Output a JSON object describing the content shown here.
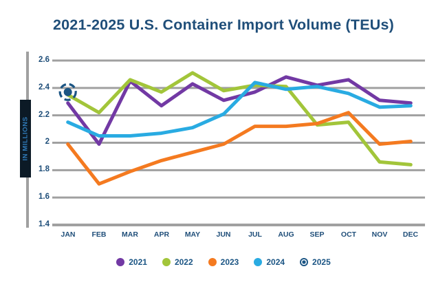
{
  "chart_data": {
    "type": "line",
    "title": "2021-2025 U.S. Container Import Volume (TEUs)",
    "ylabel": "IN MILLIONS",
    "xlabel": "",
    "categories": [
      "JAN",
      "FEB",
      "MAR",
      "APR",
      "MAY",
      "JUN",
      "JUL",
      "AUG",
      "SEP",
      "OCT",
      "NOV",
      "DEC"
    ],
    "yticks": [
      "2.6",
      "2.4",
      "2.2",
      "2",
      "1.8",
      "1.6",
      "1.4"
    ],
    "ylim": [
      1.4,
      2.6
    ],
    "grid": true,
    "legend_position": "bottom",
    "series": [
      {
        "name": "2021",
        "color": "#7239A4",
        "values": [
          2.29,
          1.99,
          2.45,
          2.27,
          2.43,
          2.31,
          2.37,
          2.48,
          2.42,
          2.46,
          2.31,
          2.29
        ]
      },
      {
        "name": "2022",
        "color": "#A2C53A",
        "values": [
          2.35,
          2.22,
          2.46,
          2.37,
          2.51,
          2.38,
          2.42,
          2.41,
          2.13,
          2.15,
          1.86,
          1.84
        ]
      },
      {
        "name": "2023",
        "color": "#F47A20",
        "values": [
          1.99,
          1.7,
          1.79,
          1.87,
          1.93,
          1.99,
          2.12,
          2.12,
          2.14,
          2.22,
          1.99,
          2.01
        ]
      },
      {
        "name": "2024",
        "color": "#29ABE2",
        "values": [
          2.15,
          2.05,
          2.05,
          2.07,
          2.11,
          2.21,
          2.44,
          2.39,
          2.41,
          2.36,
          2.26,
          2.27
        ]
      },
      {
        "name": "2025",
        "color": "#1B5584",
        "marker": "bullseye",
        "values": [
          2.37,
          null,
          null,
          null,
          null,
          null,
          null,
          null,
          null,
          null,
          null,
          null
        ]
      }
    ],
    "colors": {
      "text": "#1F4E79",
      "gridline": "#A0A0A0"
    }
  }
}
